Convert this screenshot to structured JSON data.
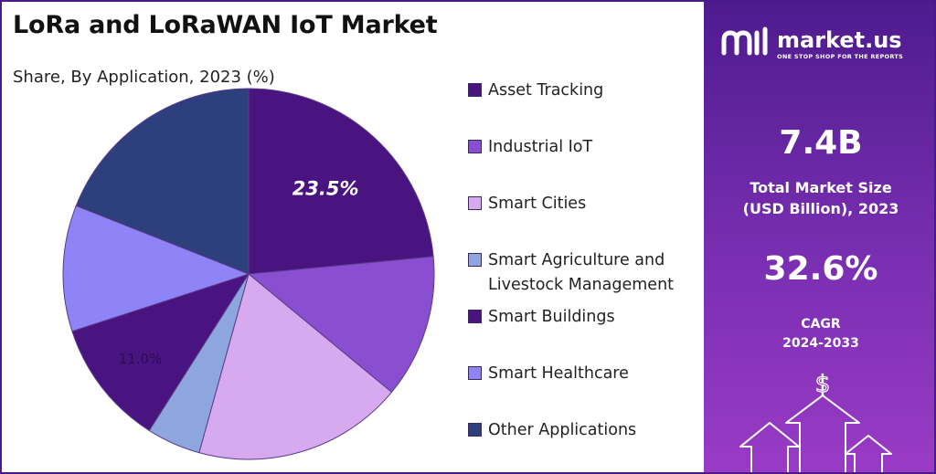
{
  "title": "LoRa and LoRaWAN IoT Market",
  "subtitle": "Share, By Application, 2023 (%)",
  "chart_data": {
    "type": "pie",
    "title": "LoRa and LoRaWAN IoT Market",
    "subtitle": "Share, By Application, 2023 (%)",
    "categories": [
      "Asset Tracking",
      "Industrial IoT",
      "Smart Cities",
      "Smart Agriculture and Livestock Management",
      "Smart Buildings",
      "Smart Healthcare",
      "Other Applications"
    ],
    "values": [
      23.5,
      12.5,
      18.3,
      4.7,
      11.0,
      11.0,
      19.0
    ],
    "colors": [
      "#4a1480",
      "#8a4fd0",
      "#d7aaf0",
      "#8ea6de",
      "#4a1480",
      "#8f84f7",
      "#2e3f7d"
    ],
    "data_labels": [
      {
        "category": "Asset Tracking",
        "text": "23.5%"
      },
      {
        "category": "Smart Buildings",
        "text": "11.0%"
      }
    ],
    "legend_position": "right"
  },
  "legend": {
    "items": [
      {
        "label": "Asset Tracking",
        "color": "#4a1480"
      },
      {
        "label": "Industrial IoT",
        "color": "#8a4fd0"
      },
      {
        "label": "Smart Cities",
        "color": "#d7aaf0"
      },
      {
        "label": "Smart Agriculture and Livestock Management",
        "color": "#8ea6de"
      },
      {
        "label": "Smart Buildings",
        "color": "#4a1480"
      },
      {
        "label": "Smart Healthcare",
        "color": "#8f84f7"
      },
      {
        "label": "Other Applications",
        "color": "#2e3f7d"
      }
    ]
  },
  "brand": {
    "name": "market.us",
    "tagline": "ONE STOP SHOP FOR THE REPORTS",
    "icon": "market-us-logo"
  },
  "stats": {
    "market_size_value": "7.4B",
    "market_size_label_1": "Total Market Size",
    "market_size_label_2": "(USD Billion), 2023",
    "cagr_value": "32.6%",
    "cagr_label_1": "CAGR",
    "cagr_label_2": "2024-2033"
  },
  "decor": {
    "dollar_symbol": "$",
    "icon": "growth-arrows-icon"
  }
}
